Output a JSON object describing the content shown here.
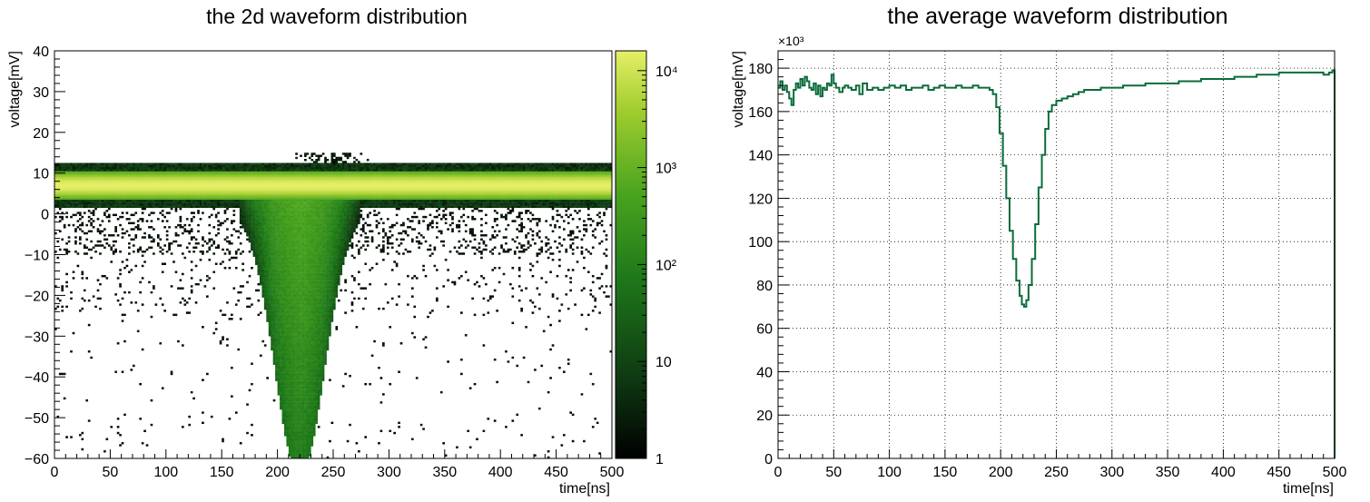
{
  "chart_data": [
    {
      "type": "heatmap",
      "title": "the 2d waveform distribution",
      "xlabel": "time[ns]",
      "ylabel": "voltage[mV]",
      "xlim": [
        0,
        500
      ],
      "ylim": [
        -60,
        40
      ],
      "x_ticks": [
        "0",
        "50",
        "100",
        "150",
        "200",
        "250",
        "300",
        "350",
        "400",
        "450",
        "500"
      ],
      "y_ticks": [
        "−60",
        "−50",
        "−40",
        "−30",
        "−20",
        "−10",
        "0",
        "10",
        "20",
        "30",
        "40"
      ],
      "z_scale": "log",
      "zlim": [
        1,
        16000
      ],
      "colorbar_ticks": [
        {
          "value": 1,
          "label": "1"
        },
        {
          "value": 10,
          "label": "10"
        },
        {
          "value": 100,
          "label": "10²"
        },
        {
          "value": 1000,
          "label": "10³"
        },
        {
          "value": 10000,
          "label": "10⁴"
        }
      ],
      "colormap": [
        "#000000",
        "#0f3a12",
        "#1f7a1a",
        "#4aa41f",
        "#9fcc2e",
        "#e6ef66"
      ],
      "baseline": {
        "voltage_mV": 7,
        "band_mV": [
          4,
          10
        ],
        "peak_counts": 15000
      },
      "pulse": {
        "center_ns": 220,
        "min_voltage_mV": -60,
        "counts_at_center": 400
      }
    },
    {
      "type": "line",
      "title": "the average  waveform distribution",
      "xlabel": "time[ns]",
      "ylabel": "voltage[mV]",
      "y_multiplier": "×10³",
      "xlim": [
        0,
        500
      ],
      "ylim": [
        0,
        188
      ],
      "grid": true,
      "color": "#0b6b3a",
      "x_ticks": [
        "0",
        "50",
        "100",
        "150",
        "200",
        "250",
        "300",
        "350",
        "400",
        "450",
        "500"
      ],
      "y_ticks": [
        "0",
        "20",
        "40",
        "60",
        "80",
        "100",
        "120",
        "140",
        "160",
        "180"
      ],
      "points": [
        [
          0,
          171
        ],
        [
          2,
          174
        ],
        [
          4,
          170
        ],
        [
          6,
          172
        ],
        [
          8,
          169
        ],
        [
          10,
          166
        ],
        [
          12,
          163
        ],
        [
          14,
          170
        ],
        [
          16,
          173
        ],
        [
          18,
          171
        ],
        [
          20,
          175
        ],
        [
          22,
          172
        ],
        [
          24,
          176
        ],
        [
          26,
          174
        ],
        [
          28,
          171
        ],
        [
          30,
          170
        ],
        [
          32,
          173
        ],
        [
          34,
          168
        ],
        [
          36,
          172
        ],
        [
          38,
          167
        ],
        [
          40,
          171
        ],
        [
          42,
          170
        ],
        [
          44,
          173
        ],
        [
          46,
          172
        ],
        [
          48,
          177
        ],
        [
          50,
          173
        ],
        [
          52,
          171
        ],
        [
          55,
          169
        ],
        [
          58,
          171
        ],
        [
          60,
          172
        ],
        [
          63,
          171
        ],
        [
          66,
          170
        ],
        [
          70,
          172
        ],
        [
          73,
          168
        ],
        [
          76,
          173
        ],
        [
          80,
          170
        ],
        [
          85,
          171
        ],
        [
          90,
          170
        ],
        [
          95,
          171
        ],
        [
          100,
          172
        ],
        [
          105,
          171
        ],
        [
          110,
          172
        ],
        [
          115,
          170
        ],
        [
          120,
          171
        ],
        [
          125,
          171
        ],
        [
          130,
          172
        ],
        [
          135,
          170
        ],
        [
          140,
          171
        ],
        [
          145,
          172
        ],
        [
          150,
          171
        ],
        [
          155,
          171
        ],
        [
          160,
          172
        ],
        [
          165,
          171
        ],
        [
          170,
          171
        ],
        [
          175,
          172
        ],
        [
          180,
          171
        ],
        [
          185,
          171
        ],
        [
          190,
          170
        ],
        [
          193,
          168
        ],
        [
          196,
          162
        ],
        [
          199,
          150
        ],
        [
          202,
          135
        ],
        [
          205,
          120
        ],
        [
          208,
          105
        ],
        [
          211,
          92
        ],
        [
          214,
          82
        ],
        [
          217,
          75
        ],
        [
          219,
          71
        ],
        [
          221,
          70
        ],
        [
          223,
          73
        ],
        [
          225,
          80
        ],
        [
          228,
          92
        ],
        [
          231,
          108
        ],
        [
          234,
          125
        ],
        [
          237,
          140
        ],
        [
          240,
          152
        ],
        [
          243,
          160
        ],
        [
          246,
          163
        ],
        [
          250,
          165
        ],
        [
          255,
          166
        ],
        [
          260,
          167
        ],
        [
          265,
          168
        ],
        [
          270,
          169
        ],
        [
          275,
          170
        ],
        [
          280,
          170
        ],
        [
          290,
          171
        ],
        [
          300,
          171
        ],
        [
          310,
          172
        ],
        [
          320,
          172
        ],
        [
          330,
          173
        ],
        [
          340,
          173
        ],
        [
          350,
          173
        ],
        [
          360,
          174
        ],
        [
          370,
          174
        ],
        [
          380,
          175
        ],
        [
          390,
          175
        ],
        [
          400,
          175
        ],
        [
          410,
          176
        ],
        [
          420,
          176
        ],
        [
          430,
          177
        ],
        [
          440,
          177
        ],
        [
          450,
          178
        ],
        [
          460,
          178
        ],
        [
          470,
          178
        ],
        [
          480,
          178
        ],
        [
          490,
          177
        ],
        [
          495,
          178
        ],
        [
          498,
          179
        ],
        [
          499,
          179
        ],
        [
          500,
          0
        ]
      ]
    }
  ]
}
